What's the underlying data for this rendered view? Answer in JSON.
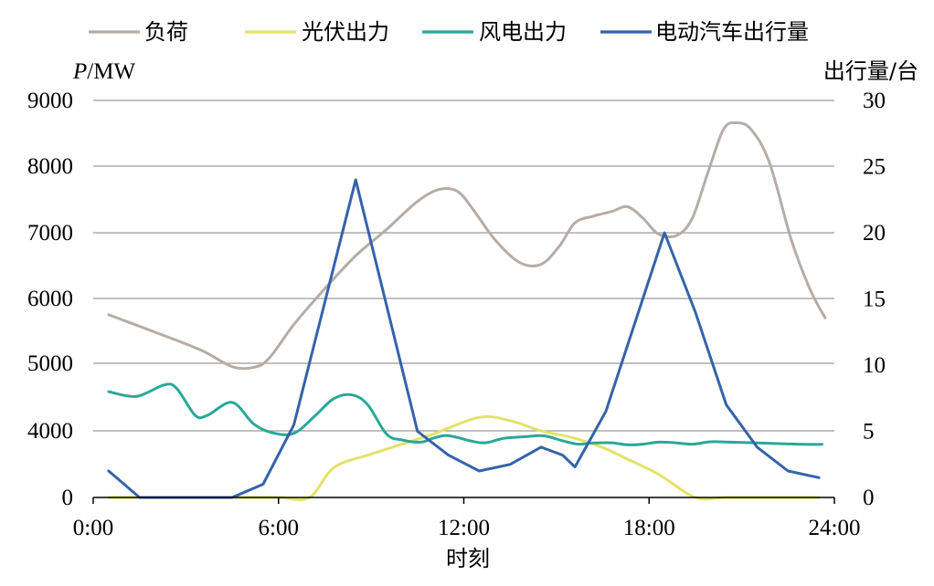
{
  "chart_data": {
    "type": "line",
    "xlabel": "时刻",
    "x_ticks": [
      "0:00",
      "6:00",
      "12:00",
      "18:00",
      "24:00"
    ],
    "xlim": [
      0,
      24
    ],
    "y_left": {
      "label_italic": "P",
      "label_rest": "/MW",
      "lim": [
        0,
        9000
      ],
      "ticks": [
        "0",
        "4000",
        "5000",
        "6000",
        "7000",
        "8000",
        "9000"
      ],
      "tick_values": [
        0,
        4000,
        5000,
        6000,
        7000,
        8000,
        9000
      ]
    },
    "y_right": {
      "label": "出行量/台",
      "lim": [
        0,
        30
      ],
      "ticks": [
        "0",
        "5",
        "10",
        "15",
        "20",
        "25",
        "30"
      ]
    },
    "grid": true,
    "legend_position": "top",
    "series": [
      {
        "name": "负荷",
        "axis": "left",
        "color": "#b7aca6",
        "points": [
          [
            0.5,
            5750
          ],
          [
            2,
            5480
          ],
          [
            3.5,
            5200
          ],
          [
            4.5,
            4950
          ],
          [
            5.2,
            4940
          ],
          [
            5.7,
            5080
          ],
          [
            6.5,
            5600
          ],
          [
            7.5,
            6150
          ],
          [
            8.5,
            6650
          ],
          [
            9.5,
            7050
          ],
          [
            10.5,
            7470
          ],
          [
            11.2,
            7650
          ],
          [
            11.8,
            7620
          ],
          [
            12.3,
            7350
          ],
          [
            13,
            6900
          ],
          [
            13.8,
            6550
          ],
          [
            14.5,
            6520
          ],
          [
            15.1,
            6800
          ],
          [
            15.6,
            7150
          ],
          [
            16.2,
            7250
          ],
          [
            16.8,
            7320
          ],
          [
            17.3,
            7390
          ],
          [
            17.8,
            7220
          ],
          [
            18.3,
            6980
          ],
          [
            18.9,
            6960
          ],
          [
            19.4,
            7220
          ],
          [
            19.9,
            7900
          ],
          [
            20.4,
            8550
          ],
          [
            20.8,
            8660
          ],
          [
            21.3,
            8560
          ],
          [
            21.9,
            8050
          ],
          [
            22.6,
            6900
          ],
          [
            23.2,
            6150
          ],
          [
            23.7,
            5700
          ]
        ],
        "smooth": true
      },
      {
        "name": "光伏出力",
        "axis": "left",
        "color": "#e3e269",
        "points": [
          [
            0.5,
            0
          ],
          [
            1,
            0
          ],
          [
            2,
            0
          ],
          [
            3,
            0
          ],
          [
            4,
            0
          ],
          [
            5,
            0
          ],
          [
            6,
            0
          ],
          [
            7,
            0
          ],
          [
            7.8,
            1800
          ],
          [
            9,
            2600
          ],
          [
            10,
            3200
          ],
          [
            11,
            3800
          ],
          [
            12.5,
            4200
          ],
          [
            13.5,
            4150
          ],
          [
            14.5,
            4000
          ],
          [
            15.5,
            3600
          ],
          [
            16.5,
            3000
          ],
          [
            17.3,
            2300
          ],
          [
            18.3,
            1400
          ],
          [
            19.5,
            0
          ],
          [
            20.5,
            0
          ],
          [
            22,
            0
          ],
          [
            23.5,
            0
          ]
        ],
        "smooth": true
      },
      {
        "name": "风电出力",
        "axis": "left",
        "color": "#2aa898",
        "points": [
          [
            0.5,
            4580
          ],
          [
            1.4,
            4510
          ],
          [
            2.3,
            4680
          ],
          [
            2.7,
            4630
          ],
          [
            3.3,
            4230
          ],
          [
            3.7,
            4230
          ],
          [
            4.5,
            4420
          ],
          [
            5.2,
            4100
          ],
          [
            5.8,
            3880
          ],
          [
            6.5,
            3850
          ],
          [
            7.2,
            4230
          ],
          [
            7.8,
            4480
          ],
          [
            8.4,
            4530
          ],
          [
            8.9,
            4380
          ],
          [
            9.5,
            3800
          ],
          [
            10,
            3450
          ],
          [
            10.6,
            3320
          ],
          [
            11,
            3550
          ],
          [
            11.4,
            3720
          ],
          [
            11.8,
            3600
          ],
          [
            12.2,
            3400
          ],
          [
            12.7,
            3280
          ],
          [
            13.3,
            3550
          ],
          [
            14,
            3650
          ],
          [
            14.6,
            3700
          ],
          [
            15.2,
            3400
          ],
          [
            15.7,
            3200
          ],
          [
            16.2,
            3270
          ],
          [
            16.8,
            3280
          ],
          [
            17.3,
            3160
          ],
          [
            17.8,
            3200
          ],
          [
            18.3,
            3320
          ],
          [
            18.8,
            3290
          ],
          [
            19.4,
            3200
          ],
          [
            20,
            3340
          ],
          [
            20.6,
            3320
          ],
          [
            21.4,
            3280
          ],
          [
            22.4,
            3220
          ],
          [
            23.0,
            3190
          ],
          [
            23.6,
            3190
          ]
        ],
        "smooth": true
      },
      {
        "name": "电动汽车出行量",
        "axis": "right",
        "color": "#3563a9",
        "points": [
          [
            0.5,
            2
          ],
          [
            1.5,
            0
          ],
          [
            2.5,
            0
          ],
          [
            3.5,
            0
          ],
          [
            4.5,
            0
          ],
          [
            5.5,
            1
          ],
          [
            6.5,
            5.5
          ],
          [
            8.5,
            24
          ],
          [
            10.5,
            5
          ],
          [
            11.5,
            3.2
          ],
          [
            12.5,
            2
          ],
          [
            13.5,
            2.5
          ],
          [
            14.5,
            3.8
          ],
          [
            15.2,
            3.2
          ],
          [
            15.6,
            2.3
          ],
          [
            16.6,
            6.5
          ],
          [
            18.5,
            20
          ],
          [
            19.5,
            14
          ],
          [
            20.5,
            7
          ],
          [
            21.5,
            3.8
          ],
          [
            22.5,
            2
          ],
          [
            23.5,
            1.5
          ]
        ],
        "smooth": false
      }
    ]
  }
}
